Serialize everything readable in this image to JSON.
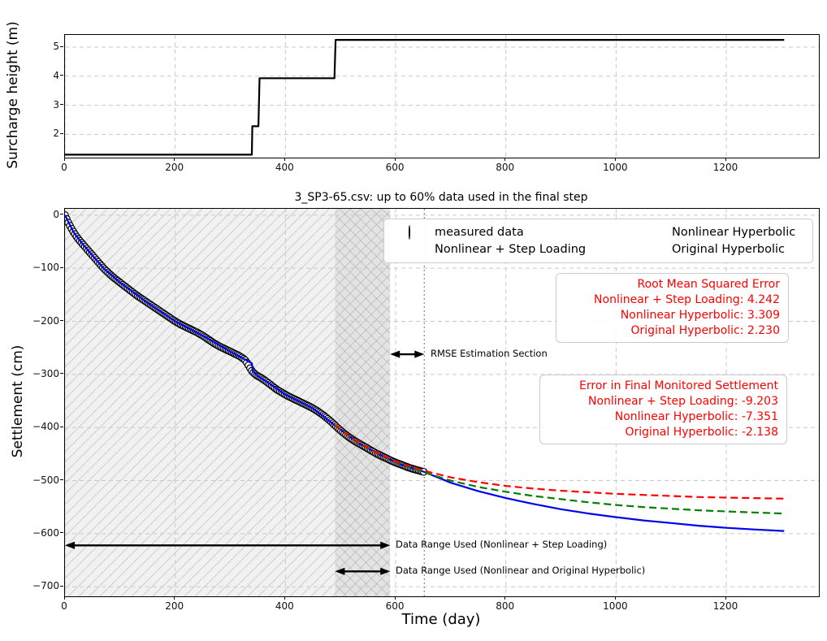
{
  "accent_colors": {
    "measured": "#000000",
    "nonlinear_step": "#0000ee",
    "nonlinear_hyperbolic": "#008000",
    "original_hyperbolic": "#ff0000",
    "annotation_text": "#ff0000",
    "grid": "#c9c9c9"
  },
  "chart_data": [
    {
      "id": "surcharge",
      "type": "line",
      "title": "",
      "xlabel": "",
      "ylabel": "Surcharge height (m)",
      "xlim": [
        0,
        1368
      ],
      "ylim": [
        1.2,
        5.42
      ],
      "xticks": [
        0,
        200,
        400,
        600,
        800,
        1000,
        1200
      ],
      "xtick_labels": [
        "0",
        "200",
        "400",
        "600",
        "800",
        "1000",
        "1200"
      ],
      "yticks": [
        2,
        3,
        4,
        5
      ],
      "ytick_labels": [
        "2",
        "3",
        "4",
        "5"
      ],
      "grid": true,
      "series": [
        {
          "name": "surcharge-height-step",
          "color": "#000000",
          "style": "solid",
          "points": [
            [
              0,
              1.3
            ],
            [
              339,
              1.3
            ],
            [
              340,
              2.28
            ],
            [
              351,
              2.28
            ],
            [
              353,
              3.93
            ],
            [
              489,
              3.93
            ],
            [
              491,
              5.25
            ],
            [
              1305,
              5.25
            ]
          ]
        }
      ]
    },
    {
      "id": "settlement",
      "type": "scatter+line",
      "title": "3_SP3-65.csv: up to 60% data used in the final step",
      "xlabel": "Time (day)",
      "ylabel": "Settlement (cm)",
      "xlim": [
        0,
        1368
      ],
      "ylim": [
        -718,
        12
      ],
      "xticks": [
        0,
        200,
        400,
        600,
        800,
        1000,
        1200
      ],
      "xtick_labels": [
        "0",
        "200",
        "400",
        "600",
        "800",
        "1000",
        "1200"
      ],
      "yticks": [
        0,
        -100,
        -200,
        -300,
        -400,
        -500,
        -600,
        -700
      ],
      "ytick_labels": [
        "0",
        "−100",
        "−200",
        "−300",
        "−400",
        "−500",
        "−600",
        "−700"
      ],
      "grid": true,
      "measured": {
        "name": "measured data",
        "marker": "circle",
        "color": "#000000",
        "points": [
          [
            0,
            0
          ],
          [
            5,
            -12
          ],
          [
            10,
            -22
          ],
          [
            15,
            -31
          ],
          [
            20,
            -39
          ],
          [
            25,
            -46
          ],
          [
            30,
            -52
          ],
          [
            40,
            -64
          ],
          [
            50,
            -76
          ],
          [
            60,
            -88
          ],
          [
            70,
            -100
          ],
          [
            80,
            -110
          ],
          [
            90,
            -119
          ],
          [
            100,
            -127
          ],
          [
            110,
            -135
          ],
          [
            120,
            -143
          ],
          [
            130,
            -151
          ],
          [
            140,
            -158
          ],
          [
            150,
            -165
          ],
          [
            160,
            -172
          ],
          [
            170,
            -179
          ],
          [
            180,
            -186
          ],
          [
            190,
            -193
          ],
          [
            200,
            -200
          ],
          [
            210,
            -206
          ],
          [
            220,
            -211
          ],
          [
            230,
            -216
          ],
          [
            240,
            -221
          ],
          [
            250,
            -227
          ],
          [
            260,
            -234
          ],
          [
            270,
            -241
          ],
          [
            280,
            -247
          ],
          [
            290,
            -252
          ],
          [
            300,
            -257
          ],
          [
            308,
            -261
          ],
          [
            316,
            -265
          ],
          [
            322,
            -269
          ],
          [
            328,
            -274
          ],
          [
            333,
            -283
          ],
          [
            338,
            -292
          ],
          [
            343,
            -298
          ],
          [
            348,
            -302
          ],
          [
            355,
            -306
          ],
          [
            365,
            -313
          ],
          [
            375,
            -321
          ],
          [
            385,
            -329
          ],
          [
            395,
            -335
          ],
          [
            405,
            -341
          ],
          [
            415,
            -346
          ],
          [
            425,
            -351
          ],
          [
            435,
            -356
          ],
          [
            445,
            -361
          ],
          [
            455,
            -367
          ],
          [
            465,
            -374
          ],
          [
            475,
            -382
          ],
          [
            485,
            -391
          ],
          [
            495,
            -401
          ],
          [
            505,
            -410
          ],
          [
            515,
            -418
          ],
          [
            525,
            -425
          ],
          [
            535,
            -431
          ],
          [
            545,
            -437
          ],
          [
            555,
            -443
          ],
          [
            565,
            -449
          ],
          [
            575,
            -454
          ],
          [
            585,
            -459
          ],
          [
            595,
            -464
          ],
          [
            605,
            -468
          ],
          [
            615,
            -472
          ],
          [
            625,
            -476
          ],
          [
            635,
            -479
          ],
          [
            645,
            -482
          ],
          [
            653,
            -484
          ]
        ]
      },
      "series": [
        {
          "name": "Nonlinear + Step Loading",
          "color": "#0000ee",
          "style": "solid",
          "points": [
            [
              0,
              0
            ],
            [
              15,
              -31
            ],
            [
              30,
              -52
            ],
            [
              50,
              -76
            ],
            [
              70,
              -100
            ],
            [
              100,
              -127
            ],
            [
              150,
              -165
            ],
            [
              200,
              -200
            ],
            [
              250,
              -227
            ],
            [
              300,
              -257
            ],
            [
              320,
              -268
            ],
            [
              332,
              -275
            ],
            [
              339,
              -279
            ],
            [
              341,
              -294
            ],
            [
              350,
              -303
            ],
            [
              365,
              -313
            ],
            [
              400,
              -338
            ],
            [
              450,
              -364
            ],
            [
              490,
              -396
            ],
            [
              530,
              -428
            ],
            [
              570,
              -451
            ],
            [
              610,
              -470
            ],
            [
              650,
              -483
            ],
            [
              700,
              -504
            ],
            [
              750,
              -520
            ],
            [
              800,
              -533
            ],
            [
              850,
              -544
            ],
            [
              900,
              -554
            ],
            [
              950,
              -562
            ],
            [
              1000,
              -569
            ],
            [
              1050,
              -575
            ],
            [
              1100,
              -580
            ],
            [
              1150,
              -585
            ],
            [
              1200,
              -589
            ],
            [
              1250,
              -592
            ],
            [
              1305,
              -595
            ]
          ]
        },
        {
          "name": "Nonlinear Hyperbolic",
          "color": "#008000",
          "style": "dashed",
          "points": [
            [
              490,
              -396
            ],
            [
              520,
              -421
            ],
            [
              560,
              -446
            ],
            [
              600,
              -465
            ],
            [
              650,
              -484
            ],
            [
              700,
              -500
            ],
            [
              750,
              -512
            ],
            [
              800,
              -521
            ],
            [
              850,
              -529
            ],
            [
              900,
              -535
            ],
            [
              950,
              -541
            ],
            [
              1000,
              -546
            ],
            [
              1050,
              -550
            ],
            [
              1100,
              -553
            ],
            [
              1150,
              -556
            ],
            [
              1200,
              -558
            ],
            [
              1250,
              -560
            ],
            [
              1305,
              -562
            ]
          ]
        },
        {
          "name": "Original Hyperbolic",
          "color": "#ff0000",
          "style": "dashed",
          "points": [
            [
              490,
              -395
            ],
            [
              520,
              -420
            ],
            [
              560,
              -445
            ],
            [
              600,
              -464
            ],
            [
              650,
              -481
            ],
            [
              700,
              -494
            ],
            [
              750,
              -503
            ],
            [
              800,
              -510
            ],
            [
              850,
              -515
            ],
            [
              900,
              -519
            ],
            [
              950,
              -522
            ],
            [
              1000,
              -525
            ],
            [
              1050,
              -527
            ],
            [
              1100,
              -529
            ],
            [
              1150,
              -531
            ],
            [
              1200,
              -532
            ],
            [
              1250,
              -533
            ],
            [
              1305,
              -534
            ]
          ]
        }
      ],
      "regions": [
        {
          "name": "step-loading-data-range",
          "x": [
            0,
            590
          ],
          "hatch": "/"
        },
        {
          "name": "hyperbolic-data-range",
          "x": [
            490,
            590
          ],
          "hatch": "\\"
        }
      ],
      "vline": {
        "x": 652,
        "style": "dotted",
        "color": "#888888"
      },
      "legend": {
        "position": "upper center",
        "items": [
          {
            "label": "measured data",
            "marker": "circle",
            "color": "#000000"
          },
          {
            "label": "Nonlinear + Step Loading",
            "marker": "line-solid",
            "color": "#0000ee"
          },
          {
            "label": "Nonlinear Hyperbolic",
            "marker": "line-dashed",
            "color": "#008000"
          },
          {
            "label": "Original Hyperbolic",
            "marker": "line-dashed",
            "color": "#ff0000"
          }
        ]
      },
      "annotations": {
        "rmse_box": {
          "lines": [
            "Root Mean Squared Error",
            "Nonlinear + Step Loading: 4.242",
            "Nonlinear Hyperbolic: 3.309",
            "Original Hyperbolic: 2.230"
          ]
        },
        "error_box": {
          "lines": [
            "Error in Final Monitored Settlement",
            "Nonlinear + Step Loading: -9.203",
            "Nonlinear Hyperbolic: -7.351",
            "Original Hyperbolic: -2.138"
          ]
        },
        "rmse_arrow": {
          "label": "RMSE Estimation Section",
          "x": [
            590,
            652
          ],
          "y": -262
        },
        "range_arrow_1": {
          "label": "Data Range Used (Nonlinear + Step Loading)",
          "x": [
            0,
            590
          ],
          "y": -622
        },
        "range_arrow_2": {
          "label": "Data Range Used (Nonlinear and Original Hyperbolic)",
          "x": [
            490,
            590
          ],
          "y": -671
        }
      }
    }
  ]
}
